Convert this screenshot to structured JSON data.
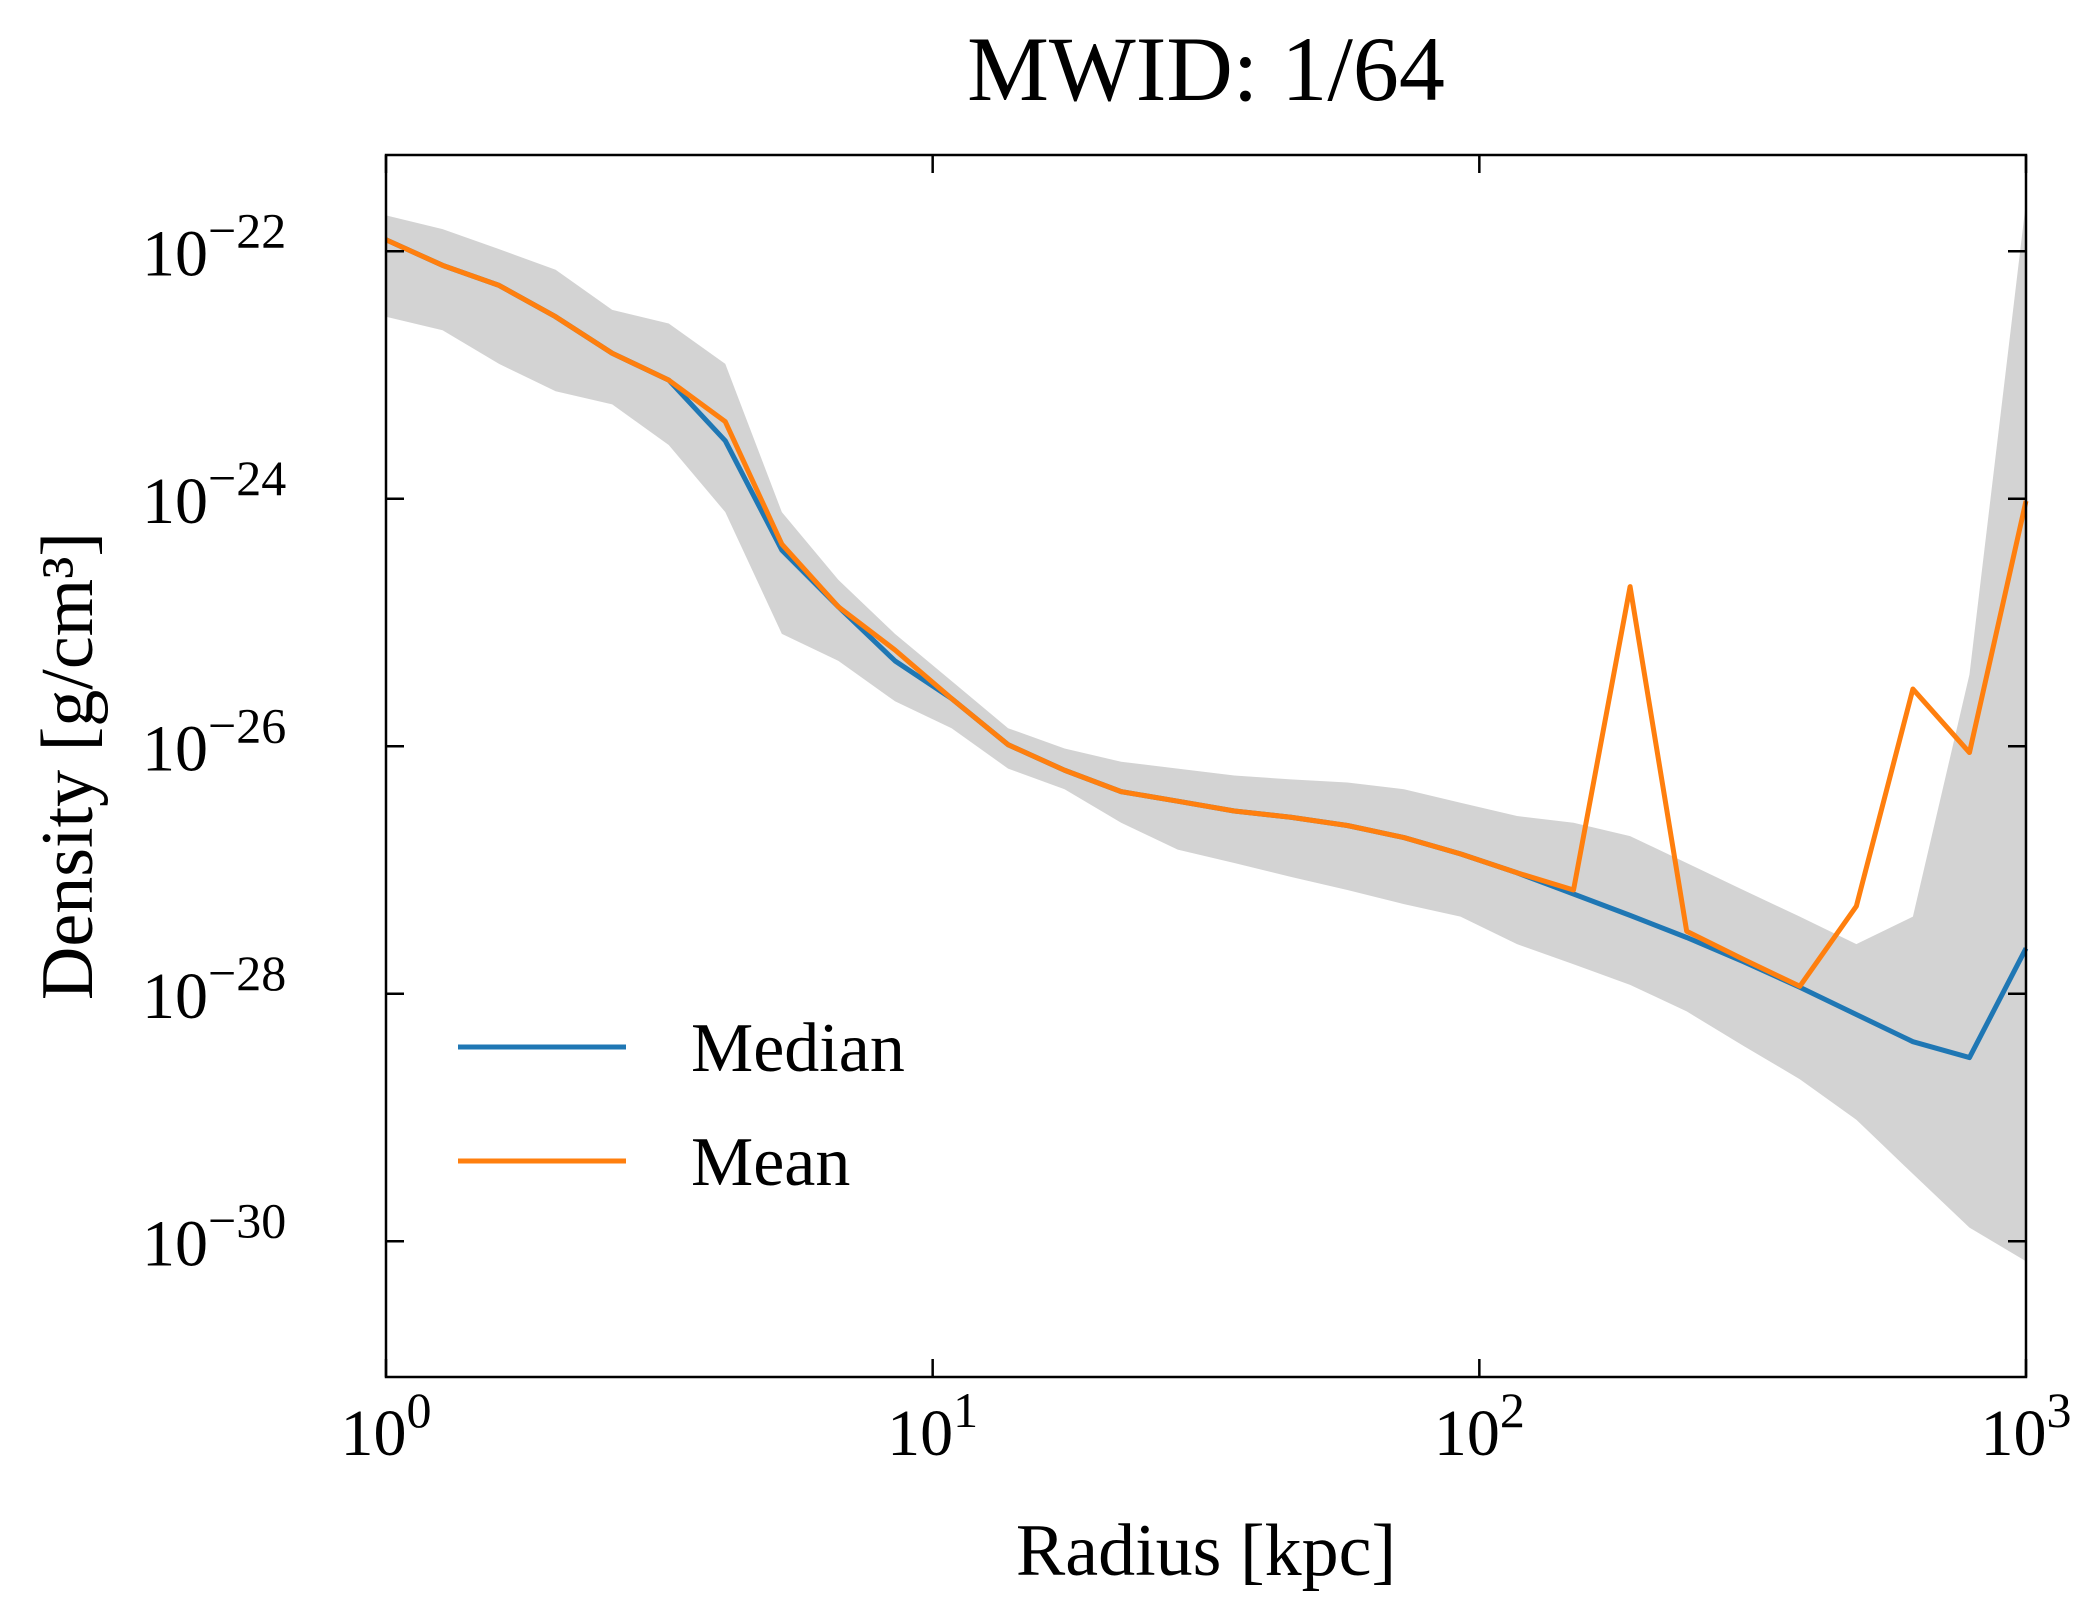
{
  "chart_data": {
    "type": "line",
    "title": "MWID: 1/64",
    "x_label": "Radius [kpc]",
    "y_label": "Density [g/cm³]",
    "xscale": "log",
    "yscale": "log",
    "xlim": [
      1,
      1000
    ],
    "ylim": [
      8e-32,
      6e-22
    ],
    "xticks": [
      {
        "value": 1,
        "label": "100"
      },
      {
        "value": 10,
        "label": "101"
      },
      {
        "value": 100,
        "label": "102"
      },
      {
        "value": 1000,
        "label": "103"
      }
    ],
    "yticks": [
      {
        "value": 1e-30,
        "label": "10−30"
      },
      {
        "value": 1e-28,
        "label": "10−28"
      },
      {
        "value": 1e-26,
        "label": "10−26"
      },
      {
        "value": 1e-24,
        "label": "10−24"
      },
      {
        "value": 1e-22,
        "label": "10−22"
      }
    ],
    "legend": "lower left",
    "x": [
      1,
      1.269,
      1.61,
      2.043,
      2.593,
      3.29,
      4.175,
      5.298,
      6.723,
      8.532,
      10.83,
      13.74,
      17.43,
      22.12,
      28.07,
      35.62,
      45.2,
      57.36,
      72.79,
      92.37,
      117.2,
      148.7,
      188.7,
      239.5,
      303.9,
      385.7,
      489.4,
      621,
      788.1,
      1000
    ],
    "band": {
      "color": "#d3d3d3",
      "high": [
        1.95e-22,
        1.51e-22,
        1.04e-22,
        7.1e-23,
        3.36e-23,
        2.61e-23,
        1.23e-23,
        7.8e-25,
        2.21e-25,
        8.1e-26,
        3.37e-26,
        1.4e-26,
        9.6e-27,
        7.5e-27,
        6.6e-27,
        5.8e-27,
        5.4e-27,
        5.1e-27,
        4.5e-27,
        3.5e-27,
        2.73e-27,
        2.41e-27,
        1.88e-27,
        1.14e-27,
        6.9e-28,
        4.2e-28,
        2.52e-28,
        4.2e-28,
        3.8e-26,
        2.5e-22
      ],
      "low": [
        2.96e-23,
        2.3e-23,
        1.23e-23,
        7.4e-24,
        5.8e-24,
        2.72e-24,
        7.8e-25,
        8.1e-26,
        4.9e-26,
        2.31e-26,
        1.4e-26,
        6.6e-27,
        4.5e-27,
        2.41e-27,
        1.46e-27,
        1.14e-27,
        8.8e-28,
        6.9e-28,
        5.3e-28,
        4.2e-28,
        2.52e-28,
        1.73e-28,
        1.18e-28,
        7.2e-29,
        3.8e-29,
        2.04e-29,
        9.6e-30,
        3.5e-30,
        1.29e-30,
        6.9e-31
      ]
    },
    "series": [
      {
        "name": "Median",
        "color": "#1f77b4",
        "values": [
          1.24e-22,
          7.7e-23,
          5.3e-23,
          2.96e-23,
          1.5e-23,
          9.1e-24,
          2.94e-24,
          3.85e-25,
          1.34e-25,
          4.9e-26,
          2.43e-26,
          1.03e-26,
          6.4e-27,
          4.3e-27,
          3.6e-27,
          3e-27,
          2.67e-27,
          2.29e-27,
          1.83e-27,
          1.35e-27,
          9.5e-28,
          6.4e-28,
          4.3e-28,
          2.85e-28,
          1.82e-28,
          1.13e-28,
          6.8e-29,
          4.1e-29,
          3.05e-29,
          2.33e-28
        ]
      },
      {
        "name": "Mean",
        "color": "#ff7f0e",
        "values": [
          1.24e-22,
          7.7e-23,
          5.3e-23,
          2.96e-23,
          1.5e-23,
          9.1e-24,
          4.2e-24,
          4.3e-25,
          1.34e-25,
          6e-26,
          2.43e-26,
          1.03e-26,
          6.4e-27,
          4.3e-27,
          3.6e-27,
          3e-27,
          2.67e-27,
          2.29e-27,
          1.83e-27,
          1.35e-27,
          9.5e-28,
          6.9e-28,
          1.95e-25,
          3.2e-28,
          1.9e-28,
          1.15e-28,
          5.1e-28,
          2.9e-26,
          8.9e-27,
          9.6e-25
        ]
      }
    ]
  }
}
